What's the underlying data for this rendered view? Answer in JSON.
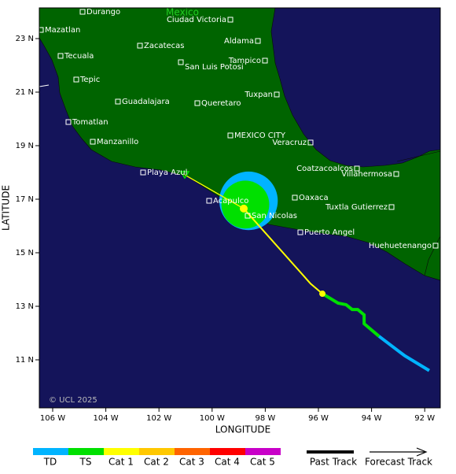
{
  "map": {
    "country_label": "Mexico",
    "cities": [
      "Durango",
      "Ciudad Victoria",
      "Mazatlan",
      "Zacatecas",
      "Aldama",
      "Tecuala",
      "Tampico",
      "San Luis Potosi",
      "Tepic",
      "Tuxpan",
      "Guadalajara",
      "Queretaro",
      "Tomatlan",
      "MEXICO CITY",
      "Veracruz",
      "Manzanillo",
      "Coatzacoalcos",
      "Playa Azul",
      "Villahermosa",
      "Oaxaca",
      "Acapulco",
      "Tuxtla Gutierrez",
      "San Nicolas",
      "Puerto Angel",
      "Huehuetenango"
    ],
    "copyright": "© UCL 2025",
    "x_label": "LONGITUDE",
    "y_label": "LATITUDE",
    "xticks": [
      {
        "value": -106,
        "label": "106 W"
      },
      {
        "value": -104,
        "label": "104 W"
      },
      {
        "value": -102,
        "label": "102 W"
      },
      {
        "value": -100,
        "label": "100 W"
      },
      {
        "value": -98,
        "label": "98 W"
      },
      {
        "value": -96,
        "label": "96 W"
      },
      {
        "value": -94,
        "label": "94 W"
      },
      {
        "value": -92,
        "label": "92 W"
      }
    ],
    "yticks": [
      {
        "value": 23,
        "label": "23 N"
      },
      {
        "value": 21,
        "label": "21 N"
      },
      {
        "value": 19,
        "label": "19 N"
      },
      {
        "value": 17,
        "label": "17 N"
      },
      {
        "value": 15,
        "label": "15 N"
      },
      {
        "value": 13,
        "label": "13 N"
      },
      {
        "value": 11,
        "label": "11 N"
      }
    ],
    "legend": [
      {
        "name": "TD",
        "color": "#00b4ff"
      },
      {
        "name": "TS",
        "color": "#00e000"
      },
      {
        "name": "Cat 1",
        "color": "#ffff00"
      },
      {
        "name": "Cat 2",
        "color": "#ffc800"
      },
      {
        "name": "Cat 3",
        "color": "#ff6400"
      },
      {
        "name": "Cat 4",
        "color": "#ff0000"
      },
      {
        "name": "Cat 5",
        "color": "#c800c8"
      }
    ],
    "past_track_label": "Past Track",
    "forecast_track_label": "Forecast Track",
    "past_track": [
      {
        "category": 0,
        "lon": [
          -91.83,
          -92.75,
          -93.72
        ],
        "lat": [
          10.6,
          11.15,
          11.88
        ]
      },
      {
        "category": 1,
        "lon": [
          -93.72,
          -94.28,
          -94.28,
          -94.52,
          -94.73,
          -94.96,
          -95.26,
          -95.85
        ],
        "lat": [
          11.88,
          12.35,
          12.68,
          12.88,
          12.88,
          13.06,
          13.12,
          13.47
        ]
      },
      {
        "category": 2,
        "lon": [
          -95.85,
          -96.3,
          -98.81
        ],
        "lat": [
          13.47,
          13.85,
          16.65
        ]
      }
    ],
    "forecast_track": {
      "lon": [
        -98.81,
        -101.03
      ],
      "lat": [
        16.65,
        17.91
      ]
    },
    "wind_radii": [
      {
        "category": 0,
        "lon": -98.63,
        "lat": 16.94,
        "radius": 1.1
      },
      {
        "category": 1,
        "lon": -98.75,
        "lat": 16.8,
        "radius": 0.9
      }
    ]
  }
}
